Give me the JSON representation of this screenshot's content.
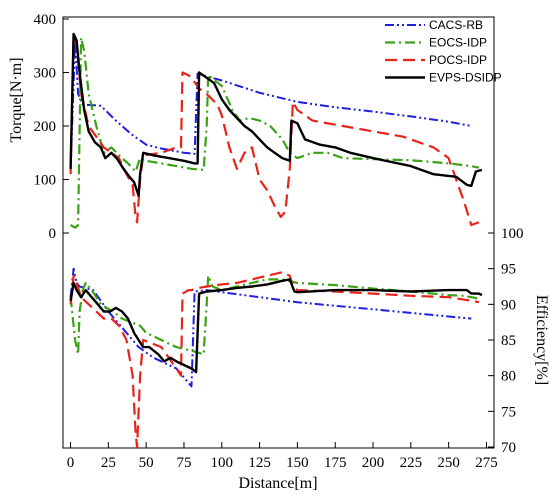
{
  "chart_data": {
    "type": "line",
    "xlabel": "Distance[m]",
    "xlim": [
      -5,
      280
    ],
    "xticks": [
      0,
      25,
      50,
      75,
      100,
      125,
      150,
      175,
      200,
      225,
      250,
      275
    ],
    "panels": [
      {
        "name": "torque",
        "ylabel": "Torque[N·m]",
        "axis_side": "left",
        "ylim": [
          0,
          400
        ],
        "yticks": [
          0,
          100,
          200,
          300,
          400
        ]
      },
      {
        "name": "efficiency",
        "ylabel": "Efficiency[%]",
        "axis_side": "right",
        "ylim": [
          70,
          100
        ],
        "yticks": [
          70,
          75,
          80,
          85,
          90,
          95,
          100
        ]
      }
    ],
    "legend_position": "top-right",
    "series": [
      {
        "name": "CACS-RB",
        "color": "#1f1fe0",
        "dash": "dash-dot-dot",
        "torque": [
          [
            0,
            120
          ],
          [
            3,
            360
          ],
          [
            5,
            260
          ],
          [
            8,
            240
          ],
          [
            20,
            238
          ],
          [
            30,
            210
          ],
          [
            40,
            185
          ],
          [
            50,
            165
          ],
          [
            60,
            158
          ],
          [
            75,
            150
          ],
          [
            82,
            148
          ],
          [
            84,
            298
          ],
          [
            100,
            285
          ],
          [
            125,
            262
          ],
          [
            150,
            245
          ],
          [
            175,
            235
          ],
          [
            200,
            227
          ],
          [
            225,
            218
          ],
          [
            250,
            208
          ],
          [
            265,
            200
          ]
        ],
        "efficiency": [
          [
            0,
            91
          ],
          [
            2,
            95
          ],
          [
            4,
            93
          ],
          [
            6,
            92.5
          ],
          [
            15,
            92
          ],
          [
            25,
            89
          ],
          [
            35,
            86.5
          ],
          [
            45,
            84
          ],
          [
            55,
            82.5
          ],
          [
            70,
            81
          ],
          [
            80,
            78.5
          ],
          [
            82,
            91.8
          ],
          [
            90,
            92
          ],
          [
            100,
            91.7
          ],
          [
            125,
            91
          ],
          [
            150,
            90.3
          ],
          [
            175,
            89.8
          ],
          [
            200,
            89.3
          ],
          [
            225,
            88.8
          ],
          [
            250,
            88.3
          ],
          [
            265,
            88
          ]
        ]
      },
      {
        "name": "EOCS-IDP",
        "color": "#3aa313",
        "dash": "dash-dot",
        "torque": [
          [
            0,
            15
          ],
          [
            3,
            10
          ],
          [
            5,
            15
          ],
          [
            7,
            365
          ],
          [
            9,
            340
          ],
          [
            12,
            260
          ],
          [
            17,
            200
          ],
          [
            22,
            150
          ],
          [
            27,
            160
          ],
          [
            32,
            145
          ],
          [
            38,
            130
          ],
          [
            43,
            115
          ],
          [
            46,
            140
          ],
          [
            50,
            135
          ],
          [
            60,
            130
          ],
          [
            70,
            125
          ],
          [
            80,
            120
          ],
          [
            88,
            118
          ],
          [
            90,
            200
          ],
          [
            91,
            295
          ],
          [
            93,
            290
          ],
          [
            100,
            275
          ],
          [
            107,
            230
          ],
          [
            112,
            210
          ],
          [
            118,
            215
          ],
          [
            125,
            210
          ],
          [
            132,
            200
          ],
          [
            140,
            175
          ],
          [
            145,
            150
          ],
          [
            150,
            140
          ],
          [
            160,
            150
          ],
          [
            170,
            150
          ],
          [
            180,
            140
          ],
          [
            200,
            138
          ],
          [
            225,
            136
          ],
          [
            250,
            130
          ],
          [
            265,
            125
          ],
          [
            270,
            122
          ]
        ],
        "efficiency": [
          [
            0,
            91
          ],
          [
            3,
            85
          ],
          [
            5,
            83
          ],
          [
            6,
            89
          ],
          [
            8,
            92
          ],
          [
            10,
            93
          ],
          [
            14,
            92
          ],
          [
            20,
            90
          ],
          [
            28,
            89
          ],
          [
            34,
            88
          ],
          [
            40,
            87.5
          ],
          [
            46,
            87
          ],
          [
            50,
            86
          ],
          [
            60,
            85
          ],
          [
            70,
            84
          ],
          [
            80,
            83.5
          ],
          [
            88,
            83
          ],
          [
            90,
            90
          ],
          [
            91,
            94
          ],
          [
            94,
            92.5
          ],
          [
            100,
            92
          ],
          [
            110,
            92.5
          ],
          [
            120,
            93
          ],
          [
            130,
            93.5
          ],
          [
            140,
            93.5
          ],
          [
            150,
            93
          ],
          [
            175,
            92.7
          ],
          [
            200,
            92.2
          ],
          [
            225,
            91.8
          ],
          [
            250,
            91.3
          ],
          [
            260,
            91.2
          ],
          [
            265,
            91
          ],
          [
            270,
            90.8
          ]
        ]
      },
      {
        "name": "POCS-IDP",
        "color": "#e8231a",
        "dash": "dash",
        "torque": [
          [
            0,
            110
          ],
          [
            2,
            370
          ],
          [
            4,
            350
          ],
          [
            7,
            260
          ],
          [
            12,
            200
          ],
          [
            17,
            180
          ],
          [
            22,
            160
          ],
          [
            27,
            150
          ],
          [
            32,
            140
          ],
          [
            37,
            110
          ],
          [
            41,
            90
          ],
          [
            43,
            30
          ],
          [
            44,
            20
          ],
          [
            46,
            100
          ],
          [
            48,
            145
          ],
          [
            60,
            150
          ],
          [
            70,
            160
          ],
          [
            73,
            160
          ],
          [
            74,
            300
          ],
          [
            78,
            295
          ],
          [
            80,
            290
          ],
          [
            85,
            270
          ],
          [
            90,
            260
          ],
          [
            97,
            240
          ],
          [
            100,
            220
          ],
          [
            105,
            160
          ],
          [
            110,
            120
          ],
          [
            115,
            150
          ],
          [
            120,
            160
          ],
          [
            125,
            100
          ],
          [
            130,
            80
          ],
          [
            135,
            50
          ],
          [
            139,
            30
          ],
          [
            142,
            40
          ],
          [
            145,
            120
          ],
          [
            147,
            245
          ],
          [
            150,
            230
          ],
          [
            155,
            220
          ],
          [
            160,
            210
          ],
          [
            170,
            205
          ],
          [
            180,
            200
          ],
          [
            190,
            195
          ],
          [
            200,
            190
          ],
          [
            210,
            185
          ],
          [
            220,
            180
          ],
          [
            230,
            170
          ],
          [
            240,
            160
          ],
          [
            250,
            140
          ],
          [
            260,
            60
          ],
          [
            265,
            15
          ],
          [
            270,
            20
          ]
        ],
        "efficiency": [
          [
            0,
            90
          ],
          [
            2,
            94
          ],
          [
            4,
            93
          ],
          [
            7,
            91
          ],
          [
            12,
            90
          ],
          [
            17,
            89
          ],
          [
            22,
            88
          ],
          [
            27,
            88
          ],
          [
            32,
            87
          ],
          [
            37,
            85
          ],
          [
            41,
            80
          ],
          [
            43,
            72
          ],
          [
            44,
            70
          ],
          [
            46,
            80
          ],
          [
            48,
            85
          ],
          [
            60,
            84
          ],
          [
            70,
            81
          ],
          [
            73,
            80
          ],
          [
            74,
            91.5
          ],
          [
            78,
            92
          ],
          [
            80,
            92
          ],
          [
            85,
            92.3
          ],
          [
            90,
            92.5
          ],
          [
            100,
            92.8
          ],
          [
            110,
            93
          ],
          [
            120,
            93.5
          ],
          [
            130,
            94
          ],
          [
            140,
            94.5
          ],
          [
            145,
            94
          ],
          [
            147,
            92.5
          ],
          [
            150,
            92
          ],
          [
            175,
            91.8
          ],
          [
            200,
            91.5
          ],
          [
            225,
            91.2
          ],
          [
            250,
            91
          ],
          [
            265,
            90.5
          ],
          [
            270,
            90.3
          ]
        ]
      },
      {
        "name": "EVPS-DSIDP",
        "color": "#000000",
        "dash": "solid",
        "torque": [
          [
            0,
            120
          ],
          [
            2,
            372
          ],
          [
            4,
            360
          ],
          [
            6,
            300
          ],
          [
            9,
            230
          ],
          [
            12,
            190
          ],
          [
            16,
            170
          ],
          [
            20,
            160
          ],
          [
            23,
            140
          ],
          [
            27,
            150
          ],
          [
            31,
            138
          ],
          [
            35,
            120
          ],
          [
            39,
            105
          ],
          [
            42,
            95
          ],
          [
            45,
            70
          ],
          [
            46,
            110
          ],
          [
            48,
            150
          ],
          [
            55,
            145
          ],
          [
            65,
            140
          ],
          [
            75,
            135
          ],
          [
            82,
            130
          ],
          [
            84,
            130
          ],
          [
            85,
            300
          ],
          [
            90,
            290
          ],
          [
            95,
            280
          ],
          [
            100,
            250
          ],
          [
            105,
            230
          ],
          [
            110,
            215
          ],
          [
            115,
            200
          ],
          [
            120,
            190
          ],
          [
            125,
            175
          ],
          [
            130,
            160
          ],
          [
            135,
            150
          ],
          [
            140,
            140
          ],
          [
            145,
            135
          ],
          [
            146,
            210
          ],
          [
            150,
            205
          ],
          [
            155,
            175
          ],
          [
            165,
            165
          ],
          [
            175,
            160
          ],
          [
            185,
            150
          ],
          [
            200,
            140
          ],
          [
            225,
            125
          ],
          [
            240,
            110
          ],
          [
            255,
            105
          ],
          [
            262,
            90
          ],
          [
            265,
            88
          ],
          [
            268,
            115
          ],
          [
            272,
            118
          ]
        ],
        "efficiency": [
          [
            0,
            90.5
          ],
          [
            2,
            93
          ],
          [
            4,
            92
          ],
          [
            7,
            91
          ],
          [
            10,
            92
          ],
          [
            14,
            91
          ],
          [
            18,
            90
          ],
          [
            22,
            89
          ],
          [
            26,
            89
          ],
          [
            30,
            89.5
          ],
          [
            34,
            89
          ],
          [
            38,
            88
          ],
          [
            42,
            86
          ],
          [
            45,
            85
          ],
          [
            48,
            84
          ],
          [
            52,
            84
          ],
          [
            58,
            83
          ],
          [
            62,
            82
          ],
          [
            66,
            82.5
          ],
          [
            70,
            82
          ],
          [
            75,
            81.5
          ],
          [
            80,
            81
          ],
          [
            83,
            80.5
          ],
          [
            85,
            91.5
          ],
          [
            90,
            91.8
          ],
          [
            100,
            92
          ],
          [
            110,
            92.3
          ],
          [
            120,
            92.5
          ],
          [
            130,
            92.8
          ],
          [
            140,
            93.3
          ],
          [
            145,
            93.5
          ],
          [
            148,
            91.8
          ],
          [
            150,
            91.7
          ],
          [
            175,
            92
          ],
          [
            200,
            92
          ],
          [
            225,
            91.8
          ],
          [
            250,
            92
          ],
          [
            262,
            92
          ],
          [
            265,
            91.5
          ],
          [
            270,
            91.5
          ],
          [
            272,
            91.3
          ]
        ]
      }
    ]
  }
}
